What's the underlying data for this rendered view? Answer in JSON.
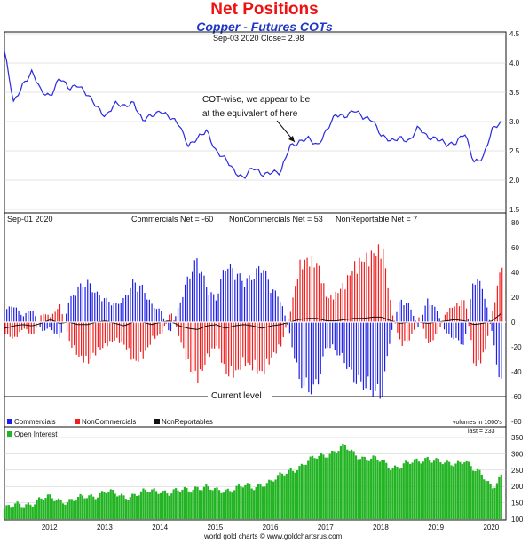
{
  "title": "Net Positions",
  "subtitle": "Copper - Futures COTs",
  "footer": "world gold charts © www.goldchartsrus.com",
  "colors": {
    "price": "#2a2ae0",
    "commercials": "#1e1ee6",
    "noncommercials": "#f01e1e",
    "nonreportables": "#111111",
    "open_interest": "#22b422",
    "frame": "#111111",
    "grid": "#c8c8c8"
  },
  "chart_data": [
    {
      "type": "line",
      "panel": "price",
      "info": "Sep-03  2020  Close= 2.98",
      "ylim": [
        1.5,
        4.5
      ],
      "yticks": [
        1.5,
        2.0,
        2.5,
        3.0,
        3.5,
        4.0,
        4.5
      ],
      "grid": true,
      "annotation": [
        "COT-wise, we appear to be",
        "at the equivalent of here"
      ],
      "series": [
        {
          "x": [
            "2011-09",
            "2011-11",
            "2012-01",
            "2012-03",
            "2012-05",
            "2012-07",
            "2012-09",
            "2012-11",
            "2013-01",
            "2013-03",
            "2013-05",
            "2013-07",
            "2013-09",
            "2013-11",
            "2014-01",
            "2014-03",
            "2014-05",
            "2014-07",
            "2014-09",
            "2014-11",
            "2015-01",
            "2015-03",
            "2015-05",
            "2015-07",
            "2015-09",
            "2015-11",
            "2016-01",
            "2016-03",
            "2016-05",
            "2016-07",
            "2016-09",
            "2016-11",
            "2017-01",
            "2017-03",
            "2017-05",
            "2017-07",
            "2017-09",
            "2017-11",
            "2018-01",
            "2018-03",
            "2018-05",
            "2018-07",
            "2018-09",
            "2018-11",
            "2019-01",
            "2019-03",
            "2019-05",
            "2019-07",
            "2019-09",
            "2019-11",
            "2020-01",
            "2020-03",
            "2020-05",
            "2020-07",
            "2020-09"
          ],
          "values": [
            4.2,
            3.3,
            3.65,
            3.85,
            3.5,
            3.45,
            3.75,
            3.55,
            3.65,
            3.45,
            3.25,
            3.1,
            3.3,
            3.25,
            3.35,
            3.0,
            3.1,
            3.2,
            3.05,
            2.95,
            2.6,
            2.7,
            2.85,
            2.5,
            2.35,
            2.15,
            2.05,
            2.2,
            2.1,
            2.15,
            2.1,
            2.6,
            2.65,
            2.7,
            2.6,
            2.85,
            3.1,
            3.1,
            3.2,
            3.05,
            3.05,
            2.75,
            2.65,
            2.75,
            2.65,
            2.9,
            2.75,
            2.7,
            2.6,
            2.65,
            2.8,
            2.3,
            2.4,
            2.85,
            2.98
          ]
        }
      ]
    },
    {
      "type": "bar",
      "panel": "net_positions",
      "info": "Sep-01  2020",
      "labels": {
        "commercials": "Commercials Net = -60",
        "noncommercials": "NonCommercials Net = 53",
        "nonreportables": "NonReportable Net = 7"
      },
      "ylim": [
        -80,
        80
      ],
      "yticks": [
        -80,
        -60,
        -40,
        -20,
        0,
        20,
        40,
        60,
        80
      ],
      "reference_line": {
        "value": -60,
        "label": "Current level"
      },
      "volume_note": "volumes in 1000's",
      "legend": [
        "Commercials",
        "NonCommercials",
        "NonReportables"
      ],
      "x": [
        "2011-09",
        "2011-11",
        "2012-01",
        "2012-03",
        "2012-05",
        "2012-07",
        "2012-09",
        "2012-11",
        "2013-01",
        "2013-03",
        "2013-05",
        "2013-07",
        "2013-09",
        "2013-11",
        "2014-01",
        "2014-03",
        "2014-05",
        "2014-07",
        "2014-09",
        "2014-11",
        "2015-01",
        "2015-03",
        "2015-05",
        "2015-07",
        "2015-09",
        "2015-11",
        "2016-01",
        "2016-03",
        "2016-05",
        "2016-07",
        "2016-09",
        "2016-11",
        "2017-01",
        "2017-03",
        "2017-05",
        "2017-07",
        "2017-09",
        "2017-11",
        "2018-01",
        "2018-03",
        "2018-05",
        "2018-07",
        "2018-09",
        "2018-11",
        "2019-01",
        "2019-03",
        "2019-05",
        "2019-07",
        "2019-09",
        "2019-11",
        "2020-01",
        "2020-03",
        "2020-05",
        "2020-07",
        "2020-09"
      ],
      "series": [
        {
          "name": "Commercials",
          "values": [
            10,
            15,
            5,
            12,
            -8,
            -5,
            -15,
            18,
            30,
            35,
            25,
            20,
            15,
            20,
            35,
            30,
            15,
            10,
            -10,
            15,
            40,
            55,
            30,
            20,
            50,
            45,
            35,
            40,
            50,
            30,
            20,
            -10,
            -50,
            -60,
            -55,
            -20,
            -25,
            -35,
            -50,
            -55,
            -60,
            -65,
            -10,
            20,
            15,
            -5,
            20,
            10,
            -10,
            -15,
            -20,
            40,
            30,
            -10,
            -60
          ]
        },
        {
          "name": "NonCommercials",
          "values": [
            -10,
            -15,
            -5,
            -12,
            8,
            5,
            15,
            -18,
            -30,
            -35,
            -25,
            -20,
            -15,
            -20,
            -35,
            -30,
            -15,
            -10,
            10,
            -15,
            -40,
            -50,
            -30,
            -20,
            -45,
            -45,
            -35,
            -40,
            -45,
            -30,
            -20,
            10,
            50,
            55,
            50,
            20,
            25,
            35,
            50,
            55,
            60,
            65,
            10,
            -20,
            -15,
            5,
            -20,
            -10,
            10,
            15,
            20,
            -40,
            -30,
            10,
            53
          ]
        },
        {
          "name": "NonReportables",
          "values": [
            -5,
            -3,
            -2,
            -3,
            -1,
            2,
            -1,
            0,
            -2,
            -2,
            0,
            1,
            -1,
            -3,
            0,
            0,
            -2,
            0,
            1,
            -3,
            -5,
            -6,
            -3,
            -2,
            -5,
            -3,
            -2,
            -3,
            -5,
            -3,
            -2,
            0,
            2,
            3,
            3,
            1,
            1,
            2,
            3,
            3,
            4,
            4,
            1,
            -1,
            0,
            0,
            -1,
            0,
            1,
            2,
            1,
            -2,
            -1,
            1,
            7
          ]
        }
      ]
    },
    {
      "type": "bar",
      "panel": "open_interest",
      "info": "last = 233",
      "ylim": [
        100,
        350
      ],
      "yticks": [
        100,
        150,
        200,
        250,
        300,
        350
      ],
      "legend": [
        "Open Interest"
      ],
      "xticks": [
        "2012",
        "2013",
        "2014",
        "2015",
        "2016",
        "2017",
        "2018",
        "2019",
        "2020"
      ],
      "x": [
        "2011-09",
        "2011-11",
        "2012-01",
        "2012-03",
        "2012-05",
        "2012-07",
        "2012-09",
        "2012-11",
        "2013-01",
        "2013-03",
        "2013-05",
        "2013-07",
        "2013-09",
        "2013-11",
        "2014-01",
        "2014-03",
        "2014-05",
        "2014-07",
        "2014-09",
        "2014-11",
        "2015-01",
        "2015-03",
        "2015-05",
        "2015-07",
        "2015-09",
        "2015-11",
        "2016-01",
        "2016-03",
        "2016-05",
        "2016-07",
        "2016-09",
        "2016-11",
        "2017-01",
        "2017-03",
        "2017-05",
        "2017-07",
        "2017-09",
        "2017-11",
        "2018-01",
        "2018-03",
        "2018-05",
        "2018-07",
        "2018-09",
        "2018-11",
        "2019-01",
        "2019-03",
        "2019-05",
        "2019-07",
        "2019-09",
        "2019-11",
        "2020-01",
        "2020-03",
        "2020-05",
        "2020-07",
        "2020-09"
      ],
      "series": [
        {
          "name": "Open Interest",
          "values": [
            130,
            140,
            145,
            150,
            160,
            165,
            160,
            155,
            160,
            170,
            175,
            185,
            175,
            170,
            175,
            180,
            185,
            190,
            180,
            185,
            190,
            200,
            195,
            185,
            190,
            195,
            200,
            195,
            210,
            215,
            230,
            250,
            260,
            275,
            290,
            300,
            310,
            320,
            300,
            290,
            285,
            275,
            260,
            265,
            270,
            275,
            290,
            280,
            265,
            270,
            285,
            250,
            230,
            200,
            233
          ]
        }
      ]
    }
  ]
}
